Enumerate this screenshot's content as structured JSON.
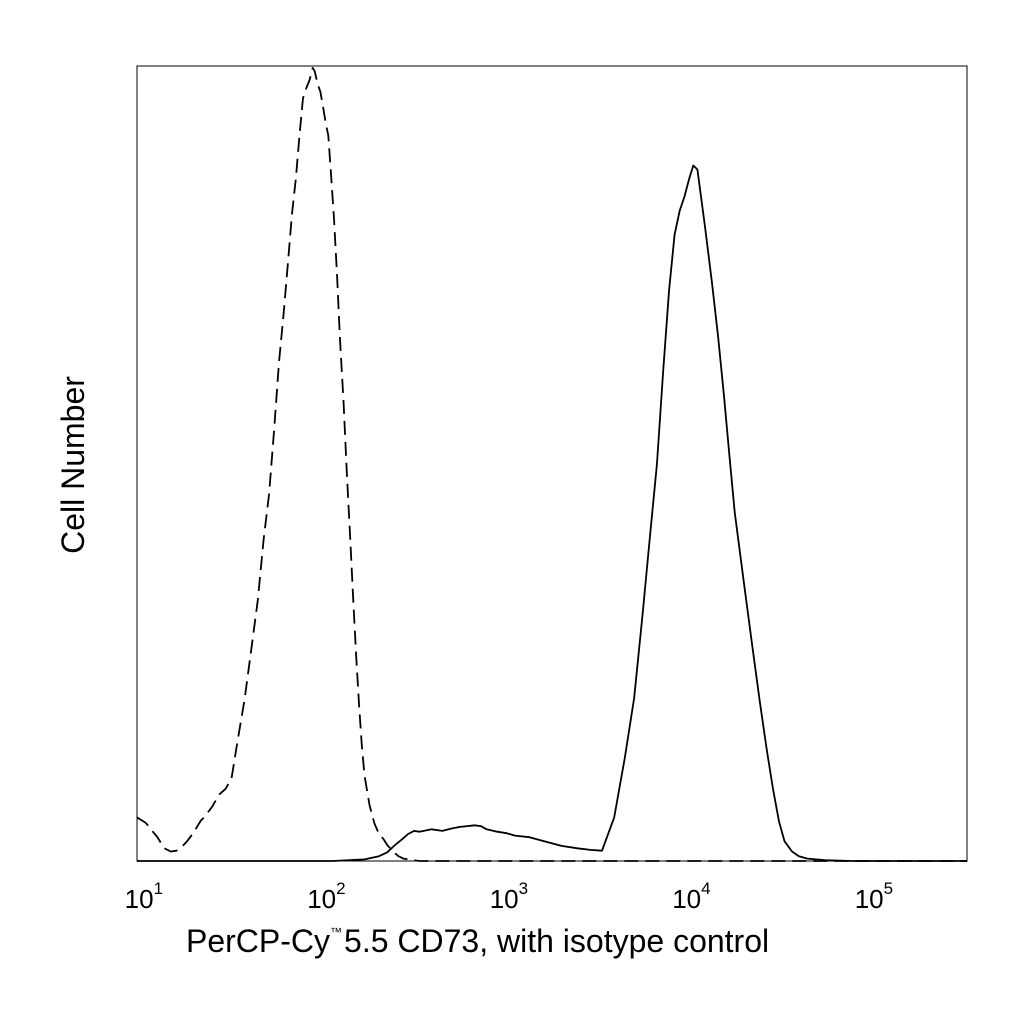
{
  "chart_data": {
    "type": "line",
    "title": "",
    "xlabel": {
      "prefix": "PerCP-Cy",
      "superscript": "™",
      "suffix": "5.5 CD73, with isotype control"
    },
    "ylabel": "Cell Number",
    "x_scale": "log",
    "xlim": [
      8.5,
      300000
    ],
    "ylim": [
      0,
      1
    ],
    "grid": false,
    "legend": "none",
    "xticks": [
      {
        "value": 10,
        "base": "10",
        "exp": "1"
      },
      {
        "value": 100,
        "base": "10",
        "exp": "2"
      },
      {
        "value": 1000,
        "base": "10",
        "exp": "3"
      },
      {
        "value": 10000,
        "base": "10",
        "exp": "4"
      },
      {
        "value": 100000,
        "base": "10",
        "exp": "5"
      }
    ],
    "series": [
      {
        "style": "dashed",
        "color": "#000000",
        "x": [
          8.5,
          9.5,
          11,
          12,
          13,
          14,
          15,
          16,
          17,
          18,
          19,
          20,
          22,
          24,
          26,
          28,
          30,
          33,
          36,
          39,
          42,
          45,
          48,
          51,
          54,
          57,
          60,
          63,
          66,
          69,
          72,
          75,
          78,
          80,
          83,
          86,
          89,
          92,
          95,
          98,
          102,
          106,
          110,
          115,
          120,
          125,
          130,
          135,
          140,
          145,
          150,
          160,
          170,
          180,
          190,
          200,
          215,
          230,
          245,
          260,
          280,
          300,
          400,
          1000,
          10000,
          300000
        ],
        "y": [
          0.055,
          0.048,
          0.03,
          0.016,
          0.012,
          0.013,
          0.018,
          0.025,
          0.033,
          0.042,
          0.051,
          0.056,
          0.069,
          0.084,
          0.091,
          0.104,
          0.147,
          0.203,
          0.268,
          0.329,
          0.405,
          0.463,
          0.545,
          0.629,
          0.69,
          0.752,
          0.815,
          0.86,
          0.915,
          0.962,
          0.975,
          0.985,
          1.0,
          0.996,
          0.98,
          0.97,
          0.95,
          0.93,
          0.915,
          0.87,
          0.81,
          0.74,
          0.66,
          0.58,
          0.49,
          0.41,
          0.33,
          0.258,
          0.196,
          0.146,
          0.108,
          0.07,
          0.047,
          0.034,
          0.028,
          0.02,
          0.012,
          0.006,
          0.003,
          0.002,
          0.001,
          0.0,
          0.0,
          0.0,
          0.0,
          0.0
        ]
      },
      {
        "style": "solid",
        "color": "#000000",
        "x": [
          8.5,
          100,
          150,
          180,
          200,
          220,
          240,
          260,
          280,
          300,
          350,
          400,
          450,
          500,
          550,
          600,
          650,
          700,
          800,
          900,
          1000,
          1200,
          1500,
          1800,
          2200,
          2600,
          3000,
          3500,
          4000,
          4500,
          5000,
          5500,
          6000,
          6500,
          7000,
          7500,
          8000,
          8500,
          9000,
          9500,
          10000,
          11000,
          12000,
          13000,
          14000,
          15000,
          16000,
          18000,
          20000,
          22000,
          24000,
          26000,
          28000,
          30000,
          33000,
          36000,
          40000,
          50000,
          70000,
          300000
        ],
        "y": [
          0.0,
          0.0,
          0.002,
          0.006,
          0.011,
          0.02,
          0.027,
          0.034,
          0.038,
          0.037,
          0.04,
          0.038,
          0.041,
          0.043,
          0.044,
          0.045,
          0.044,
          0.04,
          0.037,
          0.035,
          0.032,
          0.03,
          0.024,
          0.019,
          0.016,
          0.014,
          0.013,
          0.055,
          0.13,
          0.205,
          0.31,
          0.41,
          0.5,
          0.62,
          0.72,
          0.79,
          0.82,
          0.838,
          0.86,
          0.877,
          0.872,
          0.8,
          0.73,
          0.66,
          0.585,
          0.51,
          0.44,
          0.35,
          0.27,
          0.2,
          0.14,
          0.09,
          0.05,
          0.025,
          0.012,
          0.006,
          0.003,
          0.001,
          0.0,
          0.0
        ]
      }
    ]
  }
}
